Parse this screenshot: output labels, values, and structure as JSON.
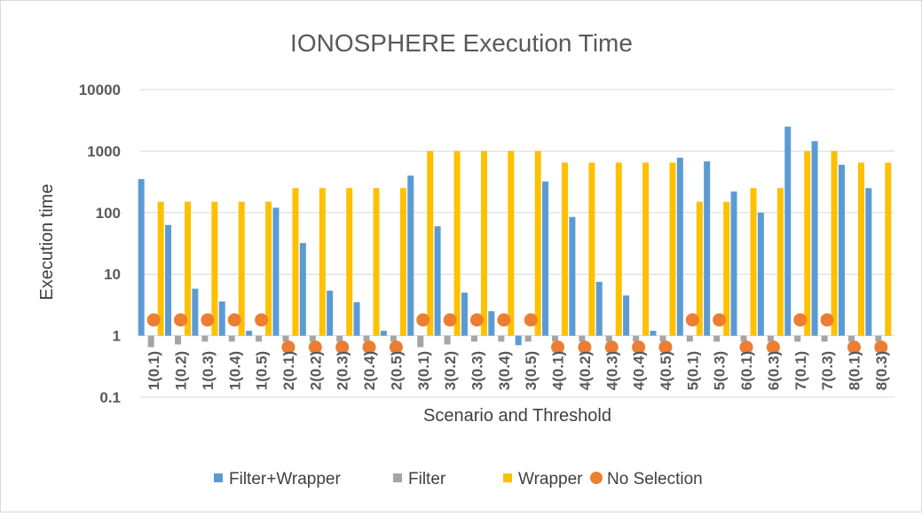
{
  "chart_data": {
    "type": "bar",
    "title": "IONOSPHERE Execution Time",
    "xlabel": "Scenario and Threshold",
    "ylabel": "Execution time",
    "yscale": "log",
    "ylim": [
      0.1,
      10000
    ],
    "yticks": [
      "0.1",
      "1",
      "10",
      "100",
      "1000",
      "10000"
    ],
    "grid": true,
    "legend_position": "bottom",
    "categories": [
      "1(0.1)",
      "1(0.2)",
      "1(0.3)",
      "1(0.4)",
      "1(0.5)",
      "2(0.1)",
      "2(0.2)",
      "2(0.3)",
      "2(0.4)",
      "2(0.5)",
      "3(0.1)",
      "3(0.2)",
      "3(0.3)",
      "3(0.4)",
      "3(0.5)",
      "4(0.1)",
      "4(0.2)",
      "4(0.3)",
      "4(0.4)",
      "4(0.5)",
      "5(0.1)",
      "5(0.3)",
      "6(0.1)",
      "6(0.3)",
      "7(0.1)",
      "7(0.3)",
      "8(0.1)",
      "8(0.3)"
    ],
    "series": [
      {
        "name": "Filter+Wrapper",
        "kind": "bar",
        "color": "#5b9bd5",
        "values": [
          350,
          63,
          5.8,
          3.6,
          1.2,
          120,
          32,
          5.4,
          3.5,
          1.2,
          400,
          60,
          5,
          2.5,
          0.7,
          320,
          85,
          7.5,
          4.5,
          1.2,
          780,
          680,
          220,
          100,
          2500,
          1450,
          600,
          250
        ]
      },
      {
        "name": "Filter",
        "kind": "bar",
        "color": "#a5a5a5",
        "values": [
          0.65,
          0.72,
          0.8,
          0.8,
          0.8,
          0.8,
          0.8,
          0.8,
          0.8,
          0.8,
          0.65,
          0.72,
          0.8,
          0.8,
          0.8,
          0.8,
          0.8,
          0.8,
          0.8,
          0.8,
          0.8,
          0.8,
          0.8,
          0.8,
          0.8,
          0.8,
          0.8,
          0.8
        ]
      },
      {
        "name": "Wrapper",
        "kind": "bar",
        "color": "#ffc000",
        "values": [
          150,
          150,
          150,
          150,
          150,
          250,
          250,
          250,
          250,
          250,
          1000,
          1000,
          1000,
          1000,
          1000,
          650,
          650,
          650,
          650,
          650,
          150,
          150,
          250,
          250,
          1000,
          1000,
          650,
          650
        ]
      },
      {
        "name": "No Selection",
        "kind": "marker",
        "color": "#ed7d31",
        "values": [
          1.8,
          1.8,
          1.8,
          1.8,
          1.8,
          0.65,
          0.65,
          0.65,
          0.65,
          0.65,
          1.8,
          1.8,
          1.8,
          1.8,
          1.8,
          0.65,
          0.65,
          0.65,
          0.65,
          0.65,
          1.8,
          1.8,
          0.65,
          0.65,
          1.8,
          1.8,
          0.65,
          0.65
        ]
      }
    ]
  }
}
